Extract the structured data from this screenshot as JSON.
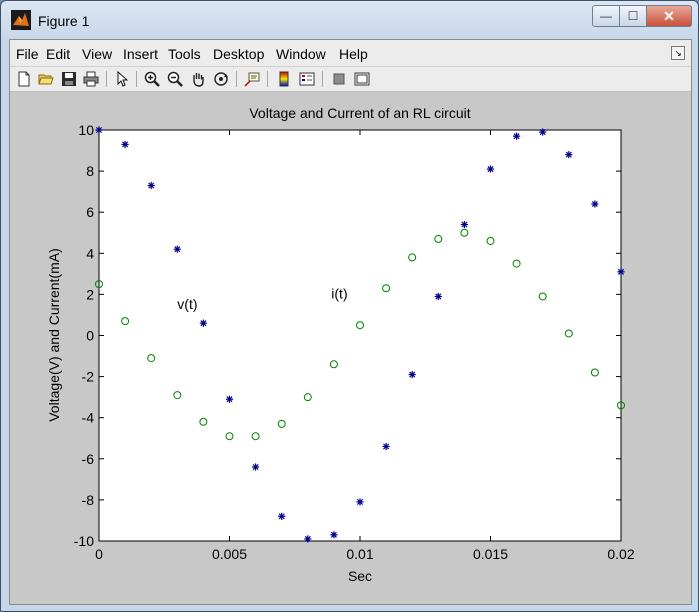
{
  "window": {
    "title": "Figure 1",
    "controls": {
      "minimize": "—",
      "maximize": "☐",
      "close": "✕"
    }
  },
  "menu": [
    "File",
    "Edit",
    "View",
    "Insert",
    "Tools",
    "Desktop",
    "Window",
    "Help"
  ],
  "toolbar": [
    "new-file-icon",
    "open-folder-icon",
    "save-icon",
    "print-icon",
    "pointer-icon",
    "zoom-in-icon",
    "zoom-out-icon",
    "pan-hand-icon",
    "rotate-3d-icon",
    "data-cursor-icon",
    "colorbar-icon",
    "legend-icon",
    "hide-plot-tools-icon",
    "show-plot-tools-icon"
  ],
  "chart_data": {
    "type": "scatter",
    "title": "Voltage and Current of an RL circuit",
    "xlabel": "Sec",
    "ylabel": "Voltage(V) and Current(mA)",
    "xlim": [
      0,
      0.02
    ],
    "ylim": [
      -10,
      10
    ],
    "xticks": [
      "0",
      "0.005",
      "0.01",
      "0.015",
      "0.02"
    ],
    "yticks": [
      "10",
      "8",
      "6",
      "4",
      "2",
      "0",
      "-2",
      "-4",
      "-6",
      "-8",
      "-10"
    ],
    "grid": false,
    "x": [
      0,
      0.001,
      0.002,
      0.003,
      0.004,
      0.005,
      0.006,
      0.007,
      0.008,
      0.009,
      0.01,
      0.011,
      0.012,
      0.013,
      0.014,
      0.015,
      0.016,
      0.017,
      0.018,
      0.019,
      0.02
    ],
    "series": [
      {
        "name": "v(t)",
        "marker": "*",
        "color": "#00008b",
        "values": [
          10,
          9.3,
          7.3,
          4.2,
          0.6,
          -3.1,
          -6.4,
          -8.8,
          -9.9,
          -9.7,
          -8.1,
          -5.4,
          -1.9,
          1.9,
          5.4,
          8.1,
          9.7,
          9.9,
          8.8,
          6.4,
          3.1
        ]
      },
      {
        "name": "i(t)",
        "marker": "o",
        "color": "#008000",
        "values": [
          2.5,
          0.7,
          -1.1,
          -2.9,
          -4.2,
          -4.9,
          -4.9,
          -4.3,
          -3.0,
          -1.4,
          0.5,
          2.3,
          3.8,
          4.7,
          5.0,
          4.6,
          3.5,
          1.9,
          0.1,
          -1.8,
          -3.4
        ]
      }
    ],
    "annotations": [
      {
        "text": "v(t)",
        "x": 0.003,
        "y": 1.3
      },
      {
        "text": "i(t)",
        "x": 0.0089,
        "y": 1.8
      }
    ]
  }
}
